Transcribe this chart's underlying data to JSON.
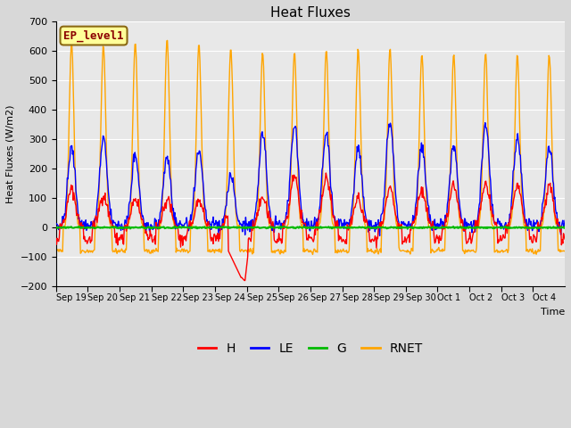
{
  "title": "Heat Fluxes",
  "ylabel": "Heat Fluxes (W/m2)",
  "xlabel": "Time",
  "ylim": [
    -200,
    700
  ],
  "yticks": [
    -200,
    -100,
    0,
    100,
    200,
    300,
    400,
    500,
    600,
    700
  ],
  "colors": {
    "H": "#ff0000",
    "LE": "#0000ff",
    "G": "#00bb00",
    "RNET": "#ffa500"
  },
  "legend_label": "EP_level1",
  "legend_box_color": "#ffff99",
  "legend_box_edge": "#8b6914",
  "n_days": 16,
  "background_color": "#e8e8e8",
  "grid_color": "#ffffff",
  "line_width": 1.0,
  "figsize": [
    6.4,
    4.8
  ],
  "dpi": 100,
  "tick_labels": [
    "Sep 19",
    "Sep 20",
    "Sep 21",
    "Sep 22",
    "Sep 23",
    "Sep 24",
    "Sep 25",
    "Sep 26",
    "Sep 27",
    "Sep 28",
    "Sep 29",
    "Sep 30",
    "Oct 1",
    "Oct 2",
    "Oct 3",
    "Oct 4"
  ],
  "rnet_peaks": [
    630,
    620,
    630,
    640,
    625,
    610,
    600,
    600,
    605,
    610,
    610,
    590,
    590,
    595,
    585,
    590
  ],
  "h_peaks": [
    130,
    110,
    100,
    95,
    90,
    50,
    100,
    170,
    170,
    100,
    130,
    125,
    145,
    150,
    145,
    140
  ],
  "le_peaks": [
    270,
    300,
    250,
    240,
    255,
    175,
    320,
    350,
    320,
    270,
    365,
    280,
    280,
    350,
    310,
    280
  ]
}
